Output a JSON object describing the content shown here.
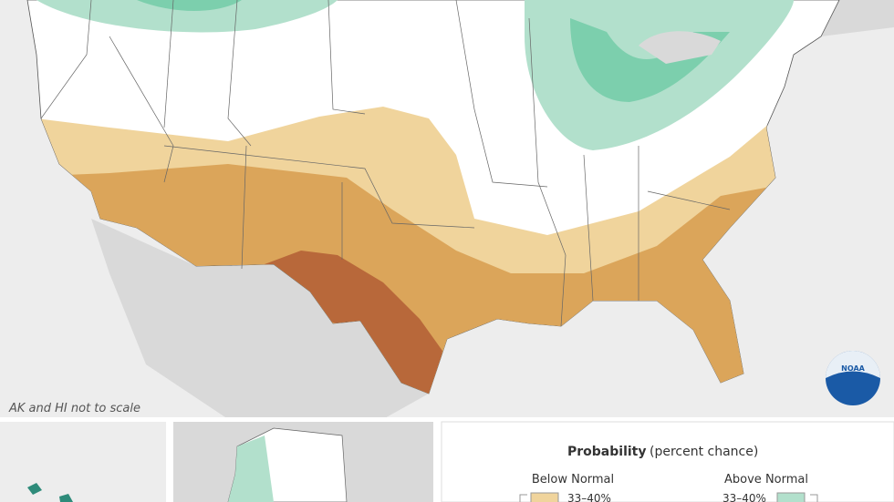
{
  "note": "AK and HI not to scale",
  "logo": "NOAA",
  "legend": {
    "title": "Probability",
    "subtitle": "(percent chance)",
    "below": {
      "label": "Below Normal",
      "items": [
        "33–40%"
      ]
    },
    "above": {
      "label": "Above Normal",
      "items": [
        "33–40%"
      ]
    }
  }
}
